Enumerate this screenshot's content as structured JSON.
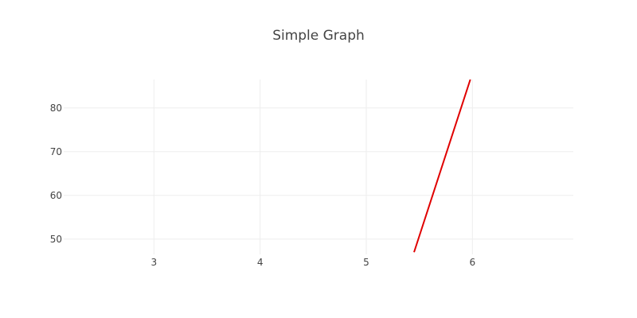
{
  "chart_data": {
    "type": "line",
    "title": "Simple Graph",
    "xlabel": "",
    "ylabel": "",
    "xlim": [
      2.15,
      6.95
    ],
    "ylim": [
      46.5,
      86.5
    ],
    "x_ticks": [
      3,
      4,
      5,
      6
    ],
    "y_ticks": [
      50,
      60,
      70,
      80
    ],
    "grid": true,
    "legend": false,
    "series": [
      {
        "color": "#e00000",
        "x": [
          5.45,
          5.98
        ],
        "y": [
          47,
          86.5
        ]
      }
    ]
  }
}
